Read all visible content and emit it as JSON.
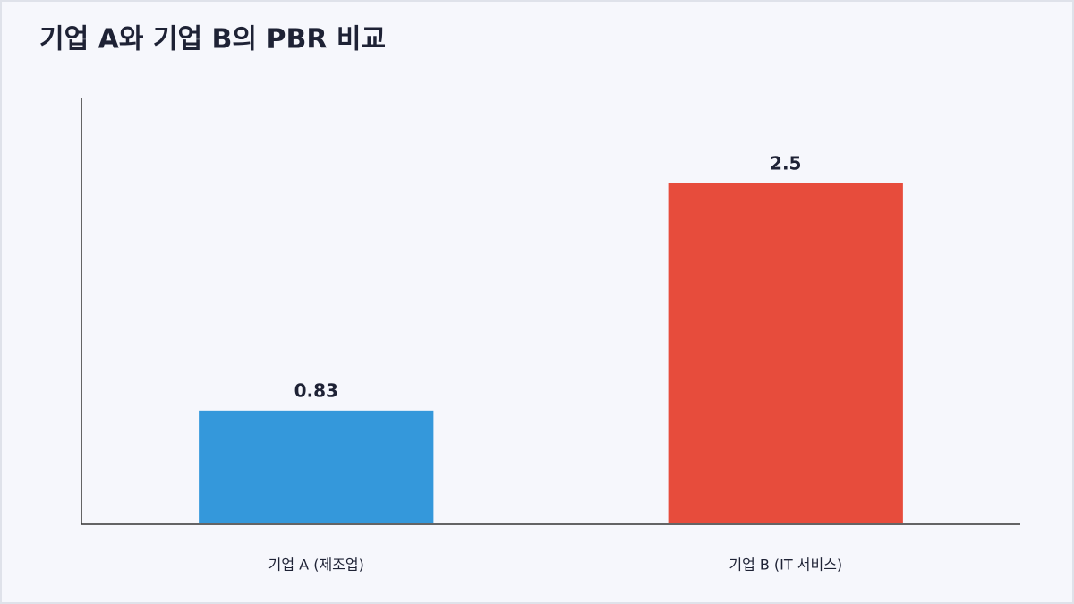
{
  "chart_data": {
    "type": "bar",
    "title": "기업 A와 기업 B의 PBR 비교",
    "categories": [
      "기업 A (제조업)",
      "기업 B (IT 서비스)"
    ],
    "values": [
      0.83,
      2.5
    ],
    "colors": [
      "#3498db",
      "#e74c3c"
    ],
    "ylim": [
      0,
      3.125
    ]
  }
}
